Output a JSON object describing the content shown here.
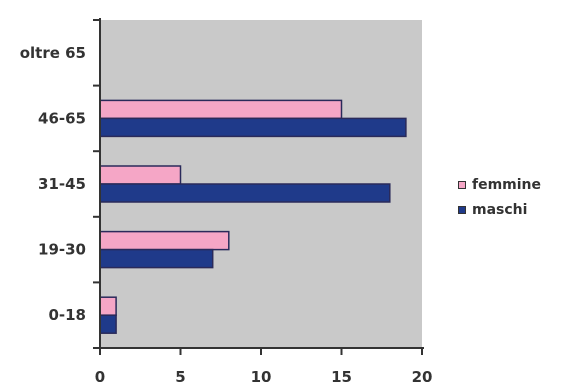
{
  "chart_data": {
    "type": "bar",
    "orientation": "horizontal",
    "categories": [
      "0-18",
      "19-30",
      "31-45",
      "46-65",
      "oltre 65"
    ],
    "series": [
      {
        "name": "femmine",
        "values": [
          1,
          8,
          5,
          15,
          0
        ],
        "color": "#f5a6c6"
      },
      {
        "name": "maschi",
        "values": [
          1,
          7,
          18,
          19,
          0
        ],
        "color": "#1f3a8a"
      }
    ],
    "x_ticks": [
      "0",
      "5",
      "10",
      "15",
      "20"
    ],
    "xlim": [
      0,
      20
    ],
    "grid": false,
    "legend_position": "right",
    "plot_background": "#c9c9c9"
  }
}
